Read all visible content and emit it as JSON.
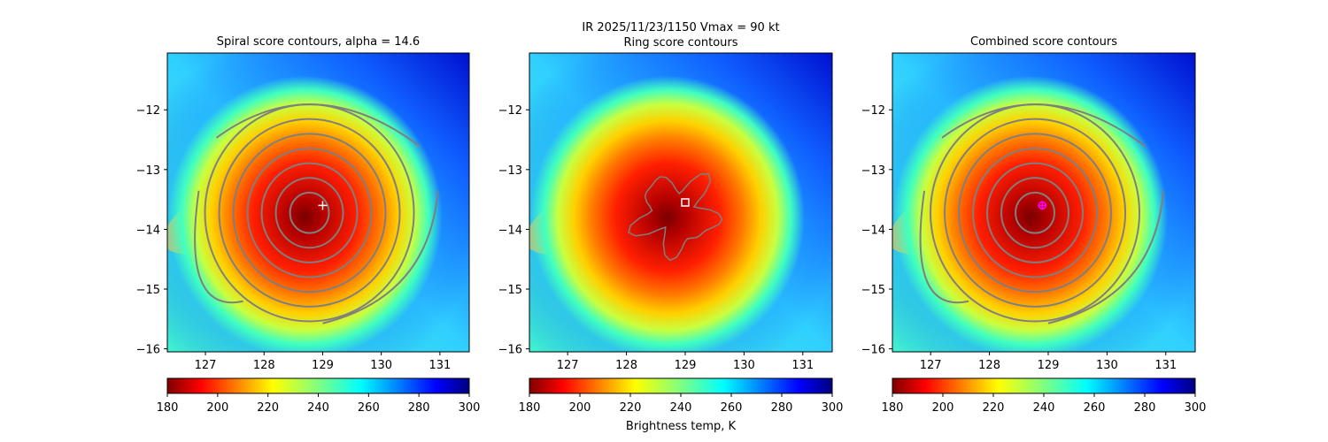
{
  "figure": {
    "suptitle_line1": "IR  2025/11/23/1150    Vmax = 90 kt",
    "colorbar_label": "Brightness temp, K"
  },
  "chart_data": [
    {
      "type": "heatmap",
      "title": "Spiral score contours, alpha = 14.6",
      "xlim": [
        126.35,
        131.5
      ],
      "ylim": [
        -16.05,
        -11.05
      ],
      "xticks": [
        127,
        128,
        129,
        130,
        131
      ],
      "yticks": [
        -12,
        -13,
        -14,
        -15,
        -16
      ],
      "xtick_labels": [
        "127",
        "128",
        "129",
        "130",
        "131"
      ],
      "ytick_labels": [
        "−12",
        "−13",
        "−14",
        "−15",
        "−16"
      ],
      "colormap": "jet",
      "color_range": [
        180,
        300
      ],
      "colorbar_ticks": [
        180,
        200,
        220,
        240,
        260,
        280,
        300
      ],
      "colorbar_tick_labels": [
        "180",
        "200",
        "220",
        "240",
        "260",
        "280",
        "300"
      ],
      "center_marker": {
        "symbol": "plus",
        "color": "#ffffff",
        "lon": 129.0,
        "lat": -13.6
      },
      "contour_color": "#7f7f7f"
    },
    {
      "type": "heatmap",
      "title": "Ring score contours",
      "xlim": [
        126.35,
        131.5
      ],
      "ylim": [
        -16.05,
        -11.05
      ],
      "xticks": [
        127,
        128,
        129,
        130,
        131
      ],
      "yticks": [
        -12,
        -13,
        -14,
        -15,
        -16
      ],
      "xtick_labels": [
        "127",
        "128",
        "129",
        "130",
        "131"
      ],
      "ytick_labels": [
        "−12",
        "−13",
        "−14",
        "−15",
        "−16"
      ],
      "colormap": "jet",
      "color_range": [
        180,
        300
      ],
      "colorbar_ticks": [
        180,
        200,
        220,
        240,
        260,
        280,
        300
      ],
      "colorbar_tick_labels": [
        "180",
        "200",
        "220",
        "240",
        "260",
        "280",
        "300"
      ],
      "center_marker": {
        "symbol": "square",
        "color": "#ffffff",
        "lon": 129.0,
        "lat": -13.55
      },
      "contour_color": "#7f7f7f"
    },
    {
      "type": "heatmap",
      "title": "Combined score contours",
      "xlim": [
        126.35,
        131.5
      ],
      "ylim": [
        -16.05,
        -11.05
      ],
      "xticks": [
        127,
        128,
        129,
        130,
        131
      ],
      "yticks": [
        -12,
        -13,
        -14,
        -15,
        -16
      ],
      "xtick_labels": [
        "127",
        "128",
        "129",
        "130",
        "131"
      ],
      "ytick_labels": [
        "−12",
        "−13",
        "−14",
        "−15",
        "−16"
      ],
      "colormap": "jet",
      "color_range": [
        180,
        300
      ],
      "colorbar_ticks": [
        180,
        200,
        220,
        240,
        260,
        280,
        300
      ],
      "colorbar_tick_labels": [
        "180",
        "200",
        "220",
        "240",
        "260",
        "280",
        "300"
      ],
      "center_marker": {
        "symbol": "plus-circle",
        "color": "#ff00ff",
        "lon": 128.9,
        "lat": -13.6
      },
      "contour_color": "#7f7f7f"
    }
  ]
}
